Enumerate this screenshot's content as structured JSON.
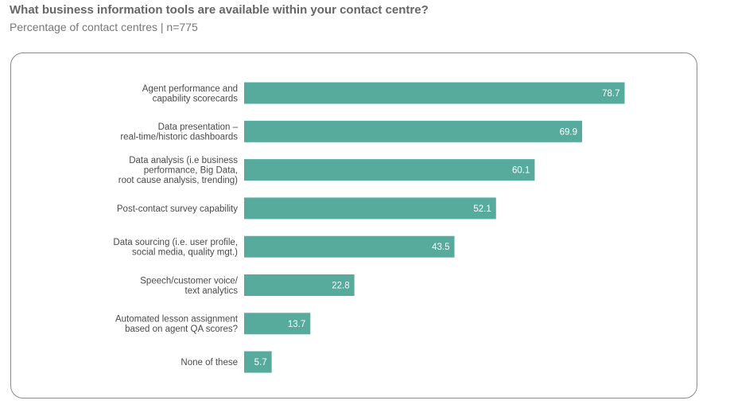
{
  "header": {
    "title": "What business information tools are available within your contact centre?",
    "subtitle": "Percentage of contact centres | n=775"
  },
  "chart_data": {
    "type": "bar",
    "orientation": "horizontal",
    "title": "What business information tools are available within your contact centre?",
    "subtitle": "Percentage of contact centres | n=775",
    "xlabel": "",
    "ylabel": "",
    "xlim": [
      0,
      100
    ],
    "grid": false,
    "bar_color": "#56ab9d",
    "categories": [
      [
        "Agent performance and",
        "capability scorecards"
      ],
      [
        "Data presentation –",
        "real-time/historic dashboards"
      ],
      [
        "Data analysis (i.e business",
        "performance, Big Data,",
        "root cause analysis, trending)"
      ],
      [
        "Post-contact survey capability"
      ],
      [
        "Data sourcing (i.e. user profile,",
        "social media, quality mgt.)"
      ],
      [
        "Speech/customer voice/",
        "text analytics"
      ],
      [
        "Automated lesson assignment",
        "based on agent QA scores?"
      ],
      [
        "None of these"
      ]
    ],
    "values": [
      78.7,
      69.9,
      60.1,
      52.1,
      43.5,
      22.8,
      13.7,
      5.7
    ]
  }
}
